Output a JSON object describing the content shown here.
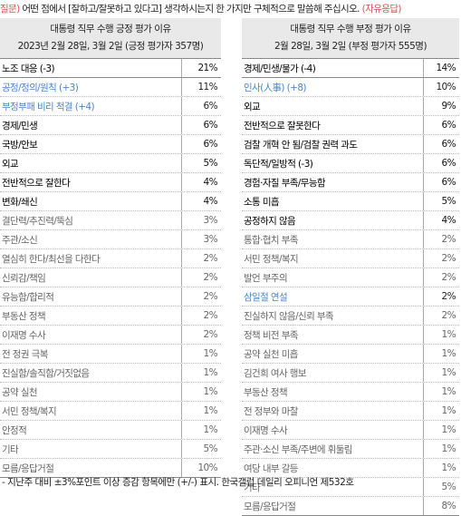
{
  "question": {
    "prefix": "질문)",
    "text": " 어떤 점에서 [잘하고/잘못하고 있다고] 생각하시는지 한 가지만 구체적으로 말씀해 주십시오.",
    "suffix": "(자유응답)"
  },
  "left_panel": {
    "title": "대통령 직무 수행 긍정 평가 이유",
    "subtitle": "2023년 2월 28일, 3월 2일 (긍정 평가자 357명)",
    "rows": [
      {
        "label": "노조 대응 (-3)",
        "value": "21%",
        "style": "b"
      },
      {
        "label": "공정/정의/원칙 (+3)",
        "value": "11%",
        "style": "blue"
      },
      {
        "label": "부정부패 비리 척결 (+4)",
        "value": "6%",
        "style": "blue"
      },
      {
        "label": "경제/민생",
        "value": "6%",
        "style": "b"
      },
      {
        "label": "국방/안보",
        "value": "6%",
        "style": "b"
      },
      {
        "label": "외교",
        "value": "5%",
        "style": "b"
      },
      {
        "label": "전반적으로 잘한다",
        "value": "4%",
        "style": "b"
      },
      {
        "label": "변화/쇄신",
        "value": "4%",
        "style": "b"
      },
      {
        "label": "결단력/추진력/뚝심",
        "value": "3%",
        "style": "g"
      },
      {
        "label": "주관/소신",
        "value": "3%",
        "style": "g"
      },
      {
        "label": "열심히 한다/최선을 다한다",
        "value": "2%",
        "style": "g"
      },
      {
        "label": "신뢰감/책임",
        "value": "2%",
        "style": "g"
      },
      {
        "label": "유능함/합리적",
        "value": "2%",
        "style": "g"
      },
      {
        "label": "부동산 정책",
        "value": "2%",
        "style": "g"
      },
      {
        "label": "이재명 수사",
        "value": "2%",
        "style": "g"
      },
      {
        "label": "전 정권 극복",
        "value": "1%",
        "style": "g"
      },
      {
        "label": "진실함/솔직함/거짓없음",
        "value": "1%",
        "style": "g"
      },
      {
        "label": "공약 실천",
        "value": "1%",
        "style": "g"
      },
      {
        "label": "서민 정책/복지",
        "value": "1%",
        "style": "g"
      },
      {
        "label": "안정적",
        "value": "1%",
        "style": "g"
      },
      {
        "label": "기타",
        "value": "5%",
        "style": "g"
      },
      {
        "label": "모름/응답거절",
        "value": "10%",
        "style": "g"
      }
    ]
  },
  "right_panel": {
    "title": "대통령 직무 수행 부정 평가 이유",
    "subtitle": "2월 28일, 3월 2일 (부정 평가자 555명)",
    "rows": [
      {
        "label": "경제/민생/물가 (-4)",
        "value": "14%",
        "style": "b"
      },
      {
        "label": "인사(人事) (+8)",
        "value": "10%",
        "style": "blue"
      },
      {
        "label": "외교",
        "value": "9%",
        "style": "b"
      },
      {
        "label": "전반적으로 잘못한다",
        "value": "6%",
        "style": "b"
      },
      {
        "label": "검찰 개혁 안 됨/검찰 권력 과도",
        "value": "6%",
        "style": "b"
      },
      {
        "label": "독단적/일방적 (-3)",
        "value": "6%",
        "style": "b"
      },
      {
        "label": "경험·자질 부족/무능함",
        "value": "6%",
        "style": "b"
      },
      {
        "label": "소통 미흡",
        "value": "5%",
        "style": "b"
      },
      {
        "label": "공정하지 않음",
        "value": "4%",
        "style": "b"
      },
      {
        "label": "통합·협치 부족",
        "value": "2%",
        "style": "g"
      },
      {
        "label": "서민 정책/복지",
        "value": "2%",
        "style": "g"
      },
      {
        "label": "발언 부주의",
        "value": "2%",
        "style": "g"
      },
      {
        "label": "삼일절 연설",
        "value": "2%",
        "style": "blue"
      },
      {
        "label": "진실하지 않음/신뢰 부족",
        "value": "2%",
        "style": "g"
      },
      {
        "label": "정책 비전 부족",
        "value": "1%",
        "style": "g"
      },
      {
        "label": "공약 실천 미흡",
        "value": "1%",
        "style": "g"
      },
      {
        "label": "김건희 여사 행보",
        "value": "1%",
        "style": "g"
      },
      {
        "label": "부동산 정책",
        "value": "1%",
        "style": "g"
      },
      {
        "label": "전 정부와 마찰",
        "value": "1%",
        "style": "g"
      },
      {
        "label": "이재명 수사",
        "value": "1%",
        "style": "g"
      },
      {
        "label": "주관·소신 부족/주변에 휘둘림",
        "value": "1%",
        "style": "g"
      },
      {
        "label": "여당 내부 갈등",
        "value": "1%",
        "style": "g"
      },
      {
        "label": "기타",
        "value": "5%",
        "style": "g"
      },
      {
        "label": "모름/응답거절",
        "value": "8%",
        "style": "g"
      }
    ]
  },
  "footnote": "- 지난주 대비 ±3%포인트 이상 증감 항목에만 (+/-) 표시. 한국갤럽 데일리 오피니언 제532호"
}
